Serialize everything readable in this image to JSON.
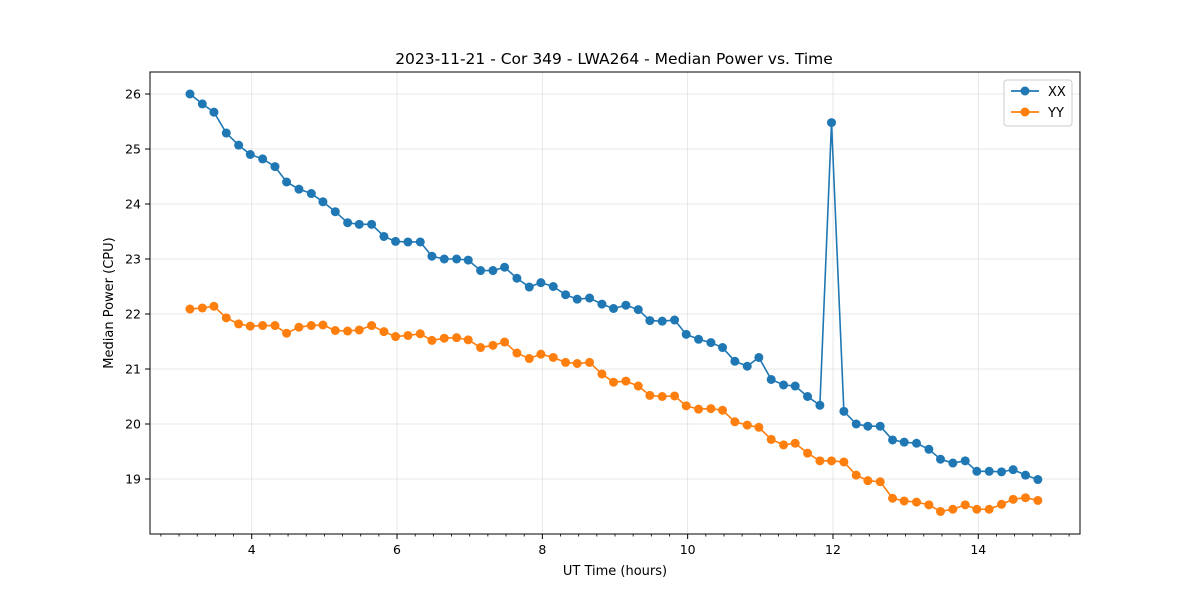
{
  "chart_data": {
    "type": "line",
    "title": "2023-11-21 - Cor 349 - LWA264 - Median Power vs. Time",
    "xlabel": "UT Time (hours)",
    "ylabel": "Median Power (CPU)",
    "xlim": [
      2.6,
      15.4
    ],
    "ylim": [
      18.0,
      26.4
    ],
    "xticks": [
      4,
      6,
      8,
      10,
      12,
      14
    ],
    "yticks": [
      19,
      20,
      21,
      22,
      23,
      24,
      25,
      26
    ],
    "grid": true,
    "legend_position": "top-right",
    "x": [
      3.15,
      3.32,
      3.48,
      3.65,
      3.82,
      3.98,
      4.15,
      4.32,
      4.48,
      4.65,
      4.82,
      4.98,
      5.15,
      5.32,
      5.48,
      5.65,
      5.82,
      5.98,
      6.15,
      6.32,
      6.48,
      6.65,
      6.82,
      6.98,
      7.15,
      7.32,
      7.48,
      7.65,
      7.82,
      7.98,
      8.15,
      8.32,
      8.48,
      8.65,
      8.82,
      8.98,
      9.15,
      9.32,
      9.48,
      9.65,
      9.82,
      9.98,
      10.15,
      10.32,
      10.48,
      10.65,
      10.82,
      10.98,
      11.15,
      11.32,
      11.48,
      11.65,
      11.82,
      11.98,
      12.15,
      12.32,
      12.48,
      12.65,
      12.82,
      12.98,
      13.15,
      13.32,
      13.48,
      13.65,
      13.82,
      13.98,
      14.15,
      14.32,
      14.48,
      14.65,
      14.82
    ],
    "series": [
      {
        "name": "XX",
        "color": "#1f77b4",
        "values": [
          26.0,
          25.82,
          25.67,
          25.29,
          25.07,
          24.9,
          24.82,
          24.68,
          24.4,
          24.27,
          24.19,
          24.04,
          23.86,
          23.66,
          23.63,
          23.63,
          23.41,
          23.32,
          23.31,
          23.31,
          23.05,
          23.0,
          23.0,
          22.98,
          22.79,
          22.79,
          22.85,
          22.65,
          22.49,
          22.57,
          22.5,
          22.35,
          22.27,
          22.29,
          22.18,
          22.1,
          22.16,
          22.08,
          21.88,
          21.87,
          21.89,
          21.63,
          21.54,
          21.48,
          21.39,
          21.14,
          21.05,
          21.21,
          20.81,
          20.71,
          20.69,
          20.5,
          20.34,
          25.48,
          20.23,
          20.0,
          19.96,
          19.96,
          19.71,
          19.67,
          19.65,
          19.54,
          19.36,
          19.29,
          19.33,
          19.14,
          19.14,
          19.13,
          19.17,
          19.07,
          18.99
        ]
      },
      {
        "name": "YY",
        "color": "#ff7f0e",
        "values": [
          22.09,
          22.11,
          22.14,
          21.93,
          21.82,
          21.78,
          21.79,
          21.79,
          21.65,
          21.76,
          21.79,
          21.8,
          21.7,
          21.69,
          21.71,
          21.79,
          21.68,
          21.59,
          21.61,
          21.64,
          21.52,
          21.56,
          21.57,
          21.53,
          21.39,
          21.43,
          21.49,
          21.29,
          21.19,
          21.27,
          21.21,
          21.12,
          21.1,
          21.12,
          20.91,
          20.76,
          20.78,
          20.69,
          20.52,
          20.5,
          20.51,
          20.33,
          20.27,
          20.28,
          20.25,
          20.04,
          19.98,
          19.94,
          19.72,
          19.62,
          19.65,
          19.47,
          19.33,
          19.33,
          19.31,
          19.07,
          18.97,
          18.95,
          18.65,
          18.6,
          18.58,
          18.53,
          18.41,
          18.45,
          18.53,
          18.45,
          18.45,
          18.54,
          18.63,
          18.66,
          18.61
        ]
      }
    ]
  }
}
